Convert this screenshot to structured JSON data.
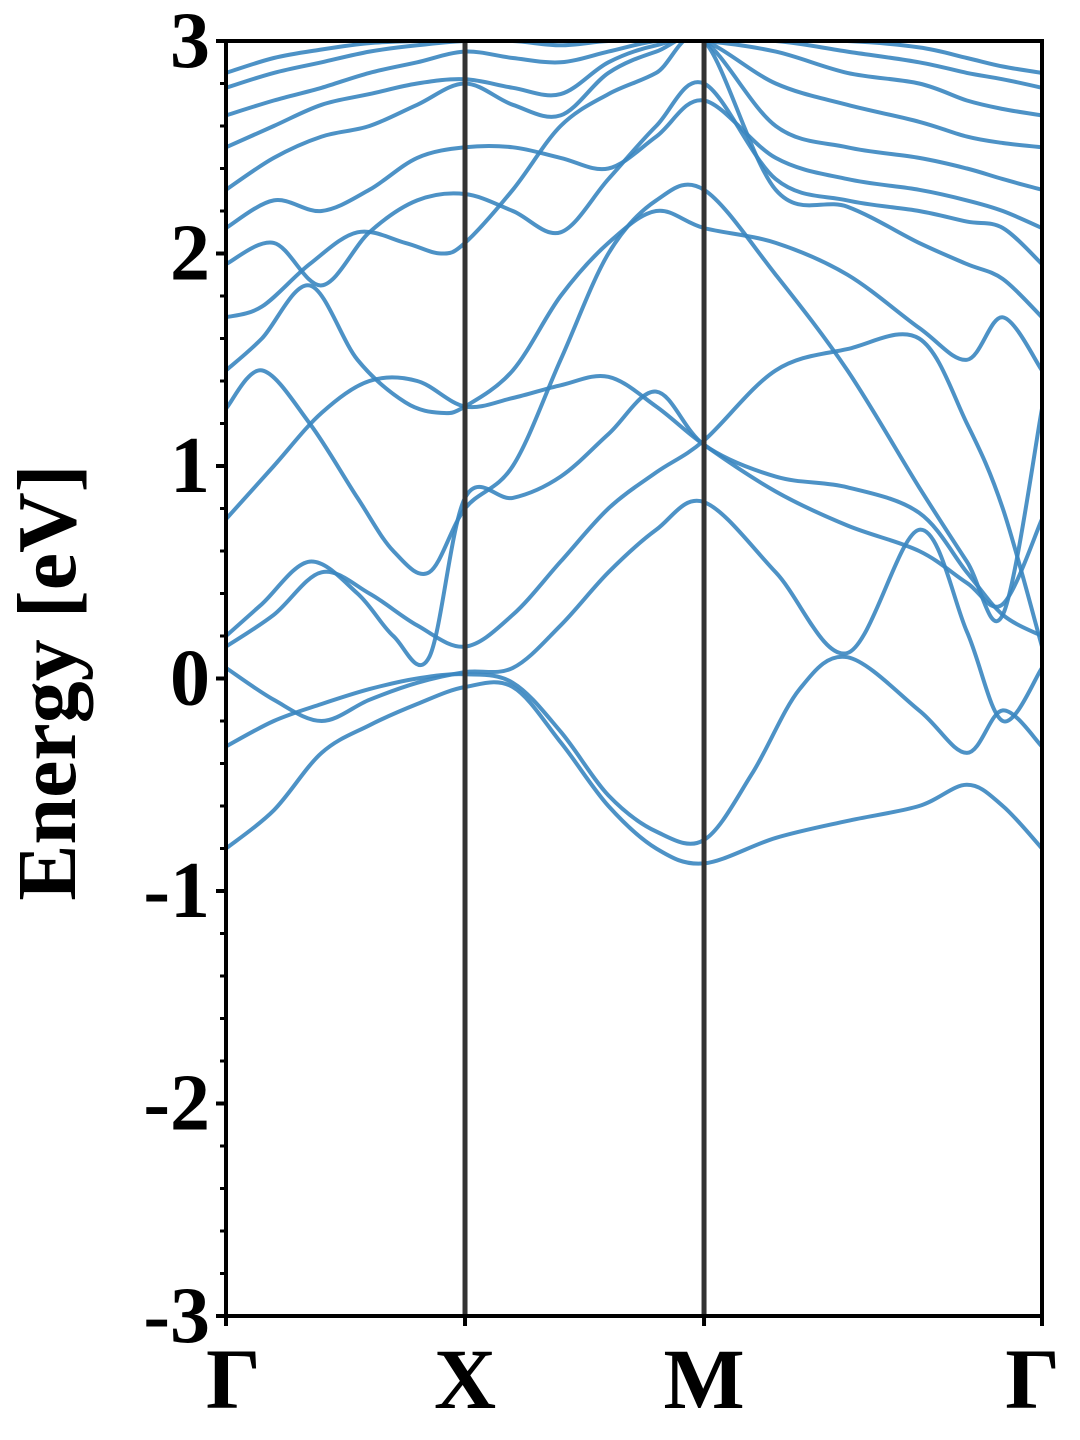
{
  "chart_data": {
    "type": "line",
    "ylabel": "Energy [eV]",
    "ylim": [
      -3,
      3
    ],
    "yticks": [
      "-3",
      "-2",
      "-1",
      "0",
      "1",
      "2",
      "3"
    ],
    "xlim": [
      0,
      3.414
    ],
    "kpoints": [
      {
        "label": "Γ",
        "x": 0
      },
      {
        "label": "X",
        "x": 1.0
      },
      {
        "label": "M",
        "x": 2.0
      },
      {
        "label": "Γ",
        "x": 3.414
      }
    ],
    "line_color": "#3a86c0",
    "divider_color": "#333333",
    "grid": false,
    "series": [
      {
        "x": [
          0,
          0.2,
          0.4,
          0.6,
          0.8,
          1.0,
          1.2,
          1.4,
          1.6,
          1.8,
          2.0,
          2.3,
          2.6,
          2.9,
          3.1,
          3.25,
          3.414
        ],
        "values": [
          -0.8,
          -0.62,
          -0.35,
          -0.22,
          -0.12,
          -0.04,
          -0.04,
          -0.3,
          -0.6,
          -0.8,
          -0.87,
          -0.75,
          -0.67,
          -0.6,
          -0.5,
          -0.6,
          -0.8
        ]
      },
      {
        "x": [
          0,
          0.2,
          0.4,
          0.6,
          0.8,
          1.0,
          1.2,
          1.4,
          1.6,
          1.8,
          2.0,
          2.2,
          2.4,
          2.6,
          2.9,
          3.1,
          3.25,
          3.414
        ],
        "values": [
          -0.32,
          -0.2,
          -0.12,
          -0.05,
          0.0,
          0.02,
          -0.02,
          -0.25,
          -0.55,
          -0.72,
          -0.76,
          -0.45,
          -0.05,
          0.1,
          -0.15,
          -0.35,
          -0.15,
          -0.32
        ]
      },
      {
        "x": [
          0,
          0.2,
          0.4,
          0.6,
          0.8,
          1.0,
          1.2,
          1.4,
          1.6,
          1.8,
          2.0,
          2.3,
          2.6,
          2.9,
          3.1,
          3.25,
          3.414
        ],
        "values": [
          0.05,
          -0.1,
          -0.2,
          -0.1,
          -0.02,
          0.03,
          0.05,
          0.25,
          0.5,
          0.7,
          0.83,
          0.5,
          0.12,
          0.7,
          0.22,
          -0.2,
          0.05
        ]
      },
      {
        "x": [
          0,
          0.2,
          0.4,
          0.6,
          0.8,
          1.0,
          1.2,
          1.4,
          1.6,
          1.8,
          2.0,
          2.3,
          2.6,
          2.9,
          3.1,
          3.25,
          3.414
        ],
        "values": [
          0.15,
          0.3,
          0.5,
          0.4,
          0.25,
          0.15,
          0.3,
          0.55,
          0.8,
          0.97,
          1.12,
          1.45,
          1.55,
          1.6,
          1.2,
          0.8,
          0.15
        ]
      },
      {
        "x": [
          0,
          0.15,
          0.35,
          0.55,
          0.7,
          0.85,
          1.0,
          1.2,
          1.4,
          1.6,
          1.8,
          2.0,
          2.3,
          2.6,
          2.9,
          3.1,
          3.25,
          3.414
        ],
        "values": [
          0.2,
          0.35,
          0.55,
          0.4,
          0.2,
          0.1,
          0.85,
          0.85,
          0.95,
          1.15,
          1.35,
          1.1,
          0.95,
          0.9,
          0.78,
          0.5,
          0.3,
          0.2
        ]
      },
      {
        "x": [
          0,
          0.2,
          0.4,
          0.6,
          0.8,
          1.0,
          1.2,
          1.4,
          1.6,
          1.8,
          2.0,
          2.3,
          2.6,
          2.9,
          3.1,
          3.25,
          3.414
        ],
        "values": [
          0.75,
          1.0,
          1.25,
          1.4,
          1.4,
          1.28,
          1.32,
          1.38,
          1.42,
          1.28,
          1.1,
          0.88,
          0.72,
          0.6,
          0.45,
          0.35,
          0.75
        ]
      },
      {
        "x": [
          0,
          0.15,
          0.35,
          0.55,
          0.7,
          0.85,
          1.0,
          1.2,
          1.4,
          1.6,
          1.8,
          2.0,
          2.3,
          2.6,
          2.9,
          3.1,
          3.25,
          3.414
        ],
        "values": [
          1.27,
          1.45,
          1.2,
          0.85,
          0.6,
          0.5,
          0.8,
          1.0,
          1.5,
          2.0,
          2.25,
          2.3,
          1.9,
          1.45,
          0.9,
          0.55,
          0.3,
          1.27
        ]
      },
      {
        "x": [
          0,
          0.15,
          0.35,
          0.55,
          0.75,
          0.9,
          1.0,
          1.2,
          1.4,
          1.6,
          1.8,
          2.0,
          2.3,
          2.6,
          2.9,
          3.1,
          3.25,
          3.414
        ],
        "values": [
          1.45,
          1.6,
          1.85,
          1.5,
          1.3,
          1.25,
          1.28,
          1.45,
          1.8,
          2.05,
          2.2,
          2.12,
          2.05,
          1.9,
          1.65,
          1.5,
          1.7,
          1.45
        ]
      },
      {
        "x": [
          0,
          0.15,
          0.35,
          0.55,
          0.75,
          0.9,
          1.0,
          1.2,
          1.4,
          1.6,
          1.8,
          2.0,
          2.3,
          2.6,
          2.9,
          3.1,
          3.25,
          3.414
        ],
        "values": [
          1.7,
          1.75,
          1.95,
          2.1,
          2.05,
          2.0,
          2.05,
          2.3,
          2.6,
          2.75,
          2.85,
          3.0,
          2.3,
          2.22,
          2.05,
          1.95,
          1.88,
          1.7
        ]
      },
      {
        "x": [
          0,
          0.2,
          0.4,
          0.6,
          0.8,
          1.0,
          1.2,
          1.4,
          1.6,
          1.8,
          2.0,
          2.3,
          2.6,
          2.9,
          3.1,
          3.25,
          3.414
        ],
        "values": [
          1.95,
          2.05,
          1.85,
          2.1,
          2.25,
          2.28,
          2.2,
          2.1,
          2.35,
          2.6,
          2.8,
          2.35,
          2.25,
          2.2,
          2.15,
          2.12,
          1.95
        ]
      },
      {
        "x": [
          0,
          0.2,
          0.4,
          0.6,
          0.8,
          1.0,
          1.2,
          1.4,
          1.6,
          1.8,
          2.0,
          2.3,
          2.6,
          2.9,
          3.1,
          3.25,
          3.414
        ],
        "values": [
          2.12,
          2.25,
          2.2,
          2.3,
          2.45,
          2.5,
          2.5,
          2.45,
          2.4,
          2.55,
          2.72,
          2.45,
          2.35,
          2.3,
          2.25,
          2.2,
          2.12
        ]
      },
      {
        "x": [
          0,
          0.2,
          0.4,
          0.6,
          0.8,
          1.0,
          1.2,
          1.4,
          1.6,
          1.8,
          2.0,
          2.3,
          2.6,
          2.9,
          3.1,
          3.25,
          3.414
        ],
        "values": [
          2.3,
          2.45,
          2.55,
          2.6,
          2.7,
          2.8,
          2.7,
          2.65,
          2.85,
          2.95,
          3.0,
          2.6,
          2.5,
          2.45,
          2.4,
          2.35,
          2.3
        ]
      },
      {
        "x": [
          0,
          0.2,
          0.4,
          0.6,
          0.8,
          1.0,
          1.2,
          1.4,
          1.6,
          1.8,
          2.0,
          2.3,
          2.6,
          2.9,
          3.1,
          3.25,
          3.414
        ],
        "values": [
          2.5,
          2.6,
          2.7,
          2.75,
          2.8,
          2.82,
          2.78,
          2.75,
          2.9,
          2.98,
          3.0,
          2.8,
          2.7,
          2.62,
          2.55,
          2.52,
          2.5
        ]
      },
      {
        "x": [
          0,
          0.2,
          0.4,
          0.6,
          0.8,
          1.0,
          1.2,
          1.4,
          1.6,
          1.8,
          2.0,
          2.3,
          2.6,
          2.9,
          3.1,
          3.25,
          3.414
        ],
        "values": [
          2.65,
          2.72,
          2.78,
          2.85,
          2.9,
          2.95,
          2.92,
          2.9,
          2.95,
          3.0,
          3.0,
          2.95,
          2.85,
          2.8,
          2.72,
          2.68,
          2.65
        ]
      },
      {
        "x": [
          0,
          0.2,
          0.4,
          0.6,
          0.8,
          1.0,
          1.2,
          1.4,
          1.6,
          1.8,
          2.0,
          2.3,
          2.6,
          2.9,
          3.1,
          3.25,
          3.414
        ],
        "values": [
          2.78,
          2.85,
          2.9,
          2.95,
          2.98,
          3.0,
          3.0,
          2.98,
          3.0,
          3.0,
          3.0,
          3.0,
          2.95,
          2.9,
          2.85,
          2.82,
          2.78
        ]
      },
      {
        "x": [
          0,
          0.2,
          0.4,
          0.6,
          0.8,
          1.0,
          1.2,
          1.4,
          1.6,
          1.8,
          2.0,
          2.3,
          2.6,
          2.9,
          3.1,
          3.25,
          3.414
        ],
        "values": [
          2.85,
          2.92,
          2.96,
          2.99,
          3.0,
          3.0,
          3.0,
          3.0,
          3.0,
          3.0,
          3.0,
          3.0,
          3.0,
          2.97,
          2.92,
          2.88,
          2.85
        ]
      }
    ]
  }
}
